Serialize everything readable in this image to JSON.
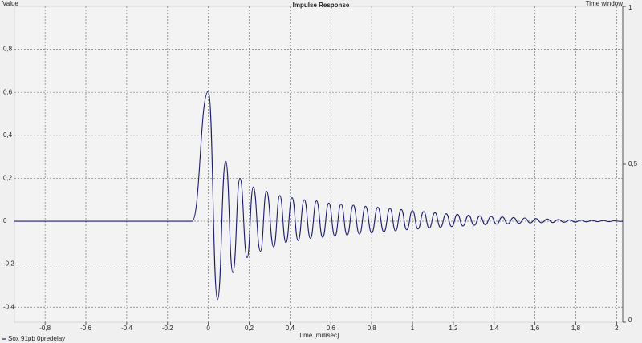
{
  "chart_data": {
    "type": "line",
    "title": "Impulse Response",
    "ylabel": "Value",
    "xlabel": "Time [millisec]",
    "y2label": "Time window",
    "x": [
      -0.95,
      -0.08,
      0,
      0.045,
      0.085,
      0.12,
      0.155,
      0.19,
      0.22,
      0.255,
      0.285,
      0.32,
      0.35,
      0.38,
      0.41,
      0.44,
      0.47,
      0.5,
      0.53,
      0.56,
      0.59,
      0.62,
      0.65,
      0.68,
      0.71,
      0.74,
      0.77,
      0.8,
      0.83,
      0.86,
      0.89,
      0.917,
      0.945,
      0.972,
      1.0,
      1.027,
      1.055,
      1.082,
      1.11,
      1.137,
      1.165,
      1.192,
      1.22,
      1.247,
      1.275,
      1.302,
      1.33,
      1.357,
      1.385,
      1.412,
      1.44,
      1.467,
      1.495,
      1.522,
      1.55,
      1.577,
      1.605,
      1.632,
      1.66,
      1.687,
      1.715,
      1.742,
      1.77,
      1.797,
      1.825,
      1.852,
      1.88,
      1.907,
      1.935,
      1.962,
      1.99,
      2.017,
      2.03
    ],
    "series": [
      {
        "name": "Sox 91pb 0predelay",
        "color": "#1c1c70",
        "values": [
          0,
          0,
          0.605,
          -0.365,
          0.28,
          -0.24,
          0.2,
          -0.17,
          0.16,
          -0.14,
          0.14,
          -0.12,
          0.12,
          -0.1,
          0.11,
          -0.09,
          0.1,
          -0.08,
          0.095,
          -0.075,
          0.085,
          -0.07,
          0.08,
          -0.065,
          0.075,
          -0.06,
          0.07,
          -0.055,
          0.065,
          -0.05,
          0.06,
          -0.045,
          0.055,
          -0.04,
          0.05,
          -0.036,
          0.045,
          -0.032,
          0.04,
          -0.028,
          0.035,
          -0.025,
          0.032,
          -0.022,
          0.028,
          -0.019,
          0.025,
          -0.016,
          0.022,
          -0.014,
          0.02,
          -0.012,
          0.017,
          -0.01,
          0.015,
          -0.008,
          0.012,
          -0.007,
          0.01,
          -0.006,
          0.008,
          -0.005,
          0.006,
          -0.004,
          0.005,
          -0.003,
          0.004,
          -0.002,
          0.003,
          -0.002,
          0.002,
          -0.001,
          0
        ]
      }
    ],
    "xlim": [
      -0.95,
      2.03
    ],
    "ylim": [
      -0.47,
      1
    ],
    "y2lim": [
      0,
      1
    ],
    "xticks": [
      {
        "value": -0.8,
        "label": "-0,8"
      },
      {
        "value": -0.6,
        "label": "-0,6"
      },
      {
        "value": -0.4,
        "label": "-0,4"
      },
      {
        "value": -0.2,
        "label": "-0,2"
      },
      0,
      {
        "value": 0.2,
        "label": "0,2"
      },
      {
        "value": 0.4,
        "label": "0,4"
      },
      {
        "value": 0.6,
        "label": "0,6"
      },
      {
        "value": 0.8,
        "label": "0,8"
      },
      1,
      {
        "value": 1.2,
        "label": "1,2"
      },
      {
        "value": 1.4,
        "label": "1,4"
      },
      {
        "value": 1.6,
        "label": "1,6"
      },
      {
        "value": 1.8,
        "label": "1,8"
      },
      2
    ],
    "yticks": [
      {
        "value": -0.4,
        "label": "-0,4"
      },
      {
        "value": -0.2,
        "label": "-0,2"
      },
      0,
      {
        "value": 0.2,
        "label": "0,2"
      },
      {
        "value": 0.4,
        "label": "0,4"
      },
      {
        "value": 0.6,
        "label": "0,6"
      },
      {
        "value": 0.8,
        "label": "0,8"
      }
    ],
    "y2ticks": [
      0,
      {
        "value": 0.5,
        "label": "0,5"
      },
      1
    ],
    "grid": true
  }
}
